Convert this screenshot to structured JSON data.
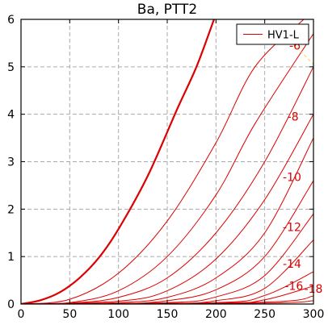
{
  "chart_data": {
    "type": "line",
    "title": "Ba, PTT2",
    "xlim": [
      0,
      300
    ],
    "ylim": [
      0,
      6
    ],
    "xticks": [
      "0",
      "50",
      "100",
      "150",
      "200",
      "250",
      "300"
    ],
    "yticks": [
      "0",
      "1",
      "2",
      "3",
      "4",
      "5",
      "6"
    ],
    "grid": true,
    "legend": {
      "position": "top-right",
      "entries": [
        {
          "label": "HV1-L",
          "color": "#dd0000"
        }
      ]
    },
    "line_color": "#dd0000",
    "highlight_color": "#ffd24d",
    "main_series": {
      "name": "HV1-L",
      "x": [
        0,
        20,
        40,
        60,
        80,
        100,
        130,
        160,
        180,
        198
      ],
      "y": [
        0,
        0.08,
        0.25,
        0.55,
        0.98,
        1.58,
        2.7,
        4.1,
        5.0,
        6.0
      ]
    },
    "contour_series": [
      {
        "x": [
          0,
          50,
          100,
          150,
          200,
          240,
          290
        ],
        "y": [
          0,
          0.1,
          0.65,
          1.75,
          3.4,
          5.0,
          6.0
        ]
      },
      {
        "x": [
          0,
          50,
          100,
          150,
          200,
          240,
          300
        ],
        "y": [
          0,
          0.03,
          0.28,
          1.0,
          2.3,
          3.8,
          5.7
        ]
      },
      {
        "x": [
          0,
          50,
          100,
          150,
          200,
          250,
          300
        ],
        "y": [
          0,
          0.02,
          0.14,
          0.55,
          1.5,
          3.0,
          5.0
        ]
      },
      {
        "x": [
          0,
          100,
          150,
          200,
          250,
          300
        ],
        "y": [
          0,
          0.06,
          0.28,
          0.95,
          2.2,
          4.0
        ]
      },
      {
        "x": [
          0,
          100,
          150,
          200,
          250,
          300
        ],
        "y": [
          0,
          0.03,
          0.14,
          0.55,
          1.5,
          3.5
        ]
      },
      {
        "x": [
          0,
          100,
          150,
          200,
          250,
          300
        ],
        "y": [
          0,
          0.01,
          0.07,
          0.3,
          1.0,
          2.6
        ]
      },
      {
        "x": [
          0,
          150,
          200,
          250,
          300
        ],
        "y": [
          0,
          0.03,
          0.15,
          0.6,
          1.9
        ]
      },
      {
        "x": [
          0,
          150,
          200,
          250,
          300
        ],
        "y": [
          0,
          0.01,
          0.07,
          0.33,
          1.35
        ]
      },
      {
        "x": [
          0,
          200,
          250,
          300
        ],
        "y": [
          0,
          0.03,
          0.18,
          0.68
        ]
      },
      {
        "x": [
          0,
          200,
          250,
          300
        ],
        "y": [
          0,
          0.01,
          0.09,
          0.38
        ]
      },
      {
        "x": [
          0,
          250,
          300
        ],
        "y": [
          0,
          0.04,
          0.17
        ]
      },
      {
        "x": [
          0,
          250,
          300
        ],
        "y": [
          0,
          0.02,
          0.07
        ]
      }
    ],
    "contour_labels": [
      {
        "text": "-6",
        "x": 281,
        "y": 5.45
      },
      {
        "text": "-8",
        "x": 279,
        "y": 3.95
      },
      {
        "text": "-10",
        "x": 278,
        "y": 2.68
      },
      {
        "text": "-12",
        "x": 278,
        "y": 1.62
      },
      {
        "text": "-14",
        "x": 278,
        "y": 0.85
      },
      {
        "text": "-16",
        "x": 280,
        "y": 0.38
      },
      {
        "text": "-18",
        "x": 300,
        "y": 0.32
      }
    ],
    "dashed_series": {
      "x": [
        262,
        300
      ],
      "y": [
        5.85,
        5.05
      ]
    }
  }
}
